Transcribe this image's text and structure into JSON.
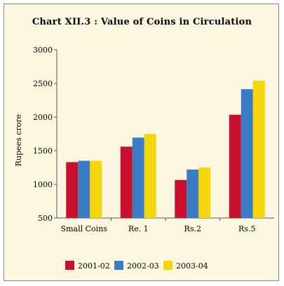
{
  "chart_data": {
    "type": "bar",
    "title": "Chart XII.3 : Value of Coins in Circulation",
    "ylabel": "Rupees crore",
    "xlabel": "",
    "categories": [
      "Small Coins",
      "Re. 1",
      "Rs.2",
      "Rs.5"
    ],
    "series": [
      {
        "name": "2001-02",
        "color": "#c8102e",
        "values": [
          1330,
          1560,
          1065,
          2035
        ]
      },
      {
        "name": "2002-03",
        "color": "#3b7dc4",
        "values": [
          1350,
          1695,
          1220,
          2415
        ]
      },
      {
        "name": "2003-04",
        "color": "#f5d60a",
        "values": [
          1350,
          1750,
          1250,
          2540
        ]
      }
    ],
    "ylim": [
      500,
      3000
    ],
    "yticks": [
      500,
      1000,
      1500,
      2000,
      2500,
      3000
    ],
    "grid": false,
    "legend_position": "bottom"
  }
}
